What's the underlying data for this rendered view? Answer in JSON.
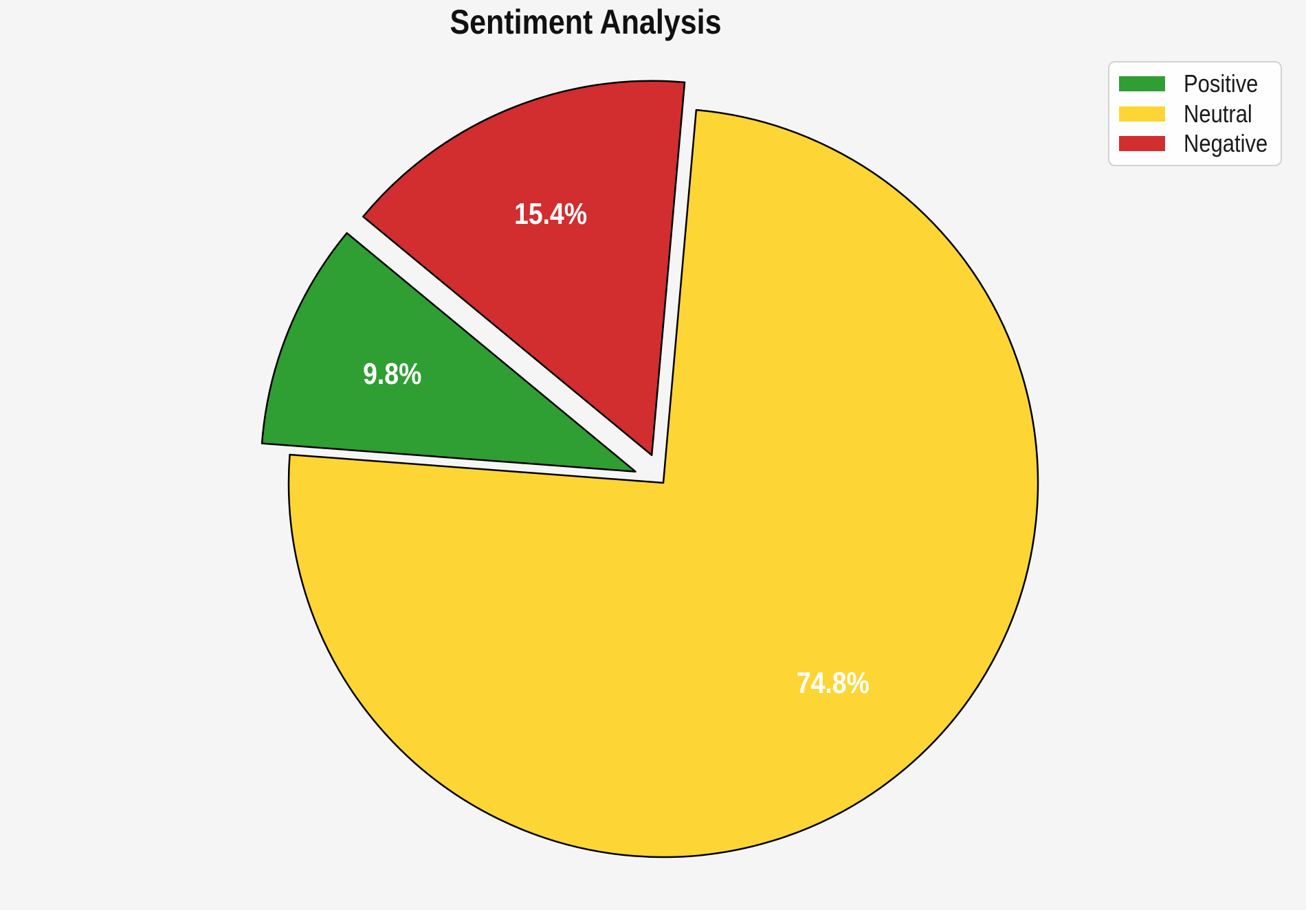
{
  "title": "Sentiment Analysis",
  "chart_data": {
    "type": "pie",
    "title": "Sentiment Analysis",
    "categories": [
      "Positive",
      "Neutral",
      "Negative"
    ],
    "values": [
      9.8,
      74.8,
      15.4
    ],
    "slice_labels": [
      "9.8%",
      "74.8%",
      "15.4%"
    ],
    "colors": [
      "#2f9e33",
      "#fdd535",
      "#d22d2f"
    ],
    "explode": [
      0.08,
      0.0,
      0.08
    ],
    "start_angle": 140.4,
    "counterclockwise": true,
    "label_distance": 0.7,
    "edge_color": "#000000",
    "label_color": "#ffffff",
    "background_color": "#f5f5f5",
    "legend_position": "upper right"
  },
  "legend": {
    "items": [
      {
        "label": "Positive",
        "color": "#2f9e33"
      },
      {
        "label": "Neutral",
        "color": "#fdd535"
      },
      {
        "label": "Negative",
        "color": "#d22d2f"
      }
    ]
  }
}
